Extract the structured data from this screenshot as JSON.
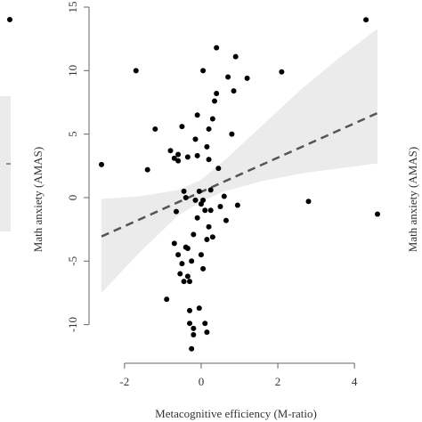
{
  "chart_data": {
    "type": "scatter",
    "title": "",
    "xlabel": "Metacognitive efficiency (M-ratio)",
    "ylabel": "Math anxiety (AMAS)",
    "right_ylabel": "Math anxiety (AMAS)",
    "xlim": [
      -2.6,
      4.6
    ],
    "ylim": [
      -12.2,
      15
    ],
    "x_ticks": [
      -2,
      0,
      2,
      4
    ],
    "x_tick_labels": [
      "-2",
      "0",
      "2",
      "4"
    ],
    "y_ticks": [
      -10,
      -5,
      0,
      5,
      10,
      15
    ],
    "y_tick_labels": [
      "-10",
      "-5",
      "0",
      "5",
      "10",
      "15"
    ],
    "grid": false,
    "legend": "none",
    "regression": {
      "style": "dashed",
      "intercept": 0.45,
      "slope": 1.35,
      "ci_color": "#ebebeb",
      "line_color": "#555555",
      "ci_lower": [
        [
          -2.6,
          -7.5
        ],
        [
          -1.6,
          -4.3
        ],
        [
          -0.6,
          -1.4
        ],
        [
          0.0,
          -0.3
        ],
        [
          0.6,
          0.5
        ],
        [
          1.6,
          1.3
        ],
        [
          2.6,
          1.9
        ],
        [
          3.6,
          2.3
        ],
        [
          4.6,
          2.7
        ]
      ],
      "ci_upper": [
        [
          -2.6,
          -0.1
        ],
        [
          -1.6,
          0.1
        ],
        [
          -0.6,
          0.6
        ],
        [
          0.0,
          1.4
        ],
        [
          0.6,
          2.9
        ],
        [
          1.6,
          5.7
        ],
        [
          2.6,
          8.5
        ],
        [
          3.6,
          11.0
        ],
        [
          4.6,
          13.3
        ]
      ]
    },
    "points": [
      {
        "x": -2.6,
        "y": 2.6
      },
      {
        "x": -1.7,
        "y": 10.0
      },
      {
        "x": -1.4,
        "y": 2.2
      },
      {
        "x": -1.2,
        "y": 5.4
      },
      {
        "x": -0.9,
        "y": -8.0
      },
      {
        "x": -0.8,
        "y": 3.7
      },
      {
        "x": -0.7,
        "y": 3.1
      },
      {
        "x": -0.6,
        "y": 3.4
      },
      {
        "x": -0.5,
        "y": 5.6
      },
      {
        "x": -0.45,
        "y": 0.5
      },
      {
        "x": -0.4,
        "y": 0.0
      },
      {
        "x": -0.4,
        "y": -3.9
      },
      {
        "x": -0.35,
        "y": -6.2
      },
      {
        "x": -0.3,
        "y": -8.9
      },
      {
        "x": -0.3,
        "y": -9.9
      },
      {
        "x": -0.25,
        "y": -11.9
      },
      {
        "x": -0.2,
        "y": -10.8
      },
      {
        "x": -0.2,
        "y": -10.3
      },
      {
        "x": -0.15,
        "y": 4.6
      },
      {
        "x": -0.1,
        "y": 6.5
      },
      {
        "x": -0.1,
        "y": 3.3
      },
      {
        "x": -0.05,
        "y": 0.5
      },
      {
        "x": 0.0,
        "y": -0.5
      },
      {
        "x": 0.05,
        "y": -0.2
      },
      {
        "x": 0.1,
        "y": -1.0
      },
      {
        "x": 0.1,
        "y": -9.9
      },
      {
        "x": 0.15,
        "y": -10.6
      },
      {
        "x": 0.15,
        "y": 4.0
      },
      {
        "x": 0.2,
        "y": 5.4
      },
      {
        "x": 0.2,
        "y": 3.0
      },
      {
        "x": 0.25,
        "y": 0.6
      },
      {
        "x": 0.25,
        "y": -1.0
      },
      {
        "x": 0.3,
        "y": 6.2
      },
      {
        "x": 0.3,
        "y": -3.1
      },
      {
        "x": 0.35,
        "y": 7.6
      },
      {
        "x": 0.4,
        "y": 8.2
      },
      {
        "x": 0.4,
        "y": 11.8
      },
      {
        "x": 0.45,
        "y": 2.3
      },
      {
        "x": 0.5,
        "y": -0.7
      },
      {
        "x": 0.6,
        "y": 0.1
      },
      {
        "x": 0.65,
        "y": -1.8
      },
      {
        "x": 0.7,
        "y": 9.5
      },
      {
        "x": 0.8,
        "y": 5.0
      },
      {
        "x": 0.85,
        "y": 8.4
      },
      {
        "x": 0.9,
        "y": 11.1
      },
      {
        "x": 0.95,
        "y": -0.6
      },
      {
        "x": 1.2,
        "y": 9.4
      },
      {
        "x": 2.1,
        "y": 9.9
      },
      {
        "x": 2.8,
        "y": -0.3
      },
      {
        "x": 4.3,
        "y": 14.0
      },
      {
        "x": 4.6,
        "y": -1.3
      },
      {
        "x": -0.7,
        "y": -3.6
      },
      {
        "x": -0.6,
        "y": -4.5
      },
      {
        "x": -0.55,
        "y": -6.0
      },
      {
        "x": -0.5,
        "y": -5.2
      },
      {
        "x": -0.45,
        "y": -6.6
      },
      {
        "x": -0.35,
        "y": -4.0
      },
      {
        "x": -0.3,
        "y": -6.6
      },
      {
        "x": -0.25,
        "y": -5.0
      },
      {
        "x": -0.2,
        "y": -2.9
      },
      {
        "x": -0.15,
        "y": -0.2
      },
      {
        "x": -0.1,
        "y": -1.6
      },
      {
        "x": 0.0,
        "y": -4.5
      },
      {
        "x": 0.05,
        "y": -5.6
      },
      {
        "x": 0.15,
        "y": -3.3
      },
      {
        "x": 0.2,
        "y": -2.3
      },
      {
        "x": -0.65,
        "y": -1.1
      },
      {
        "x": -0.05,
        "y": -8.7
      },
      {
        "x": 0.05,
        "y": 10.0
      },
      {
        "x": -0.6,
        "y": 2.9
      },
      {
        "x": -0.35,
        "y": 3.2
      }
    ]
  }
}
